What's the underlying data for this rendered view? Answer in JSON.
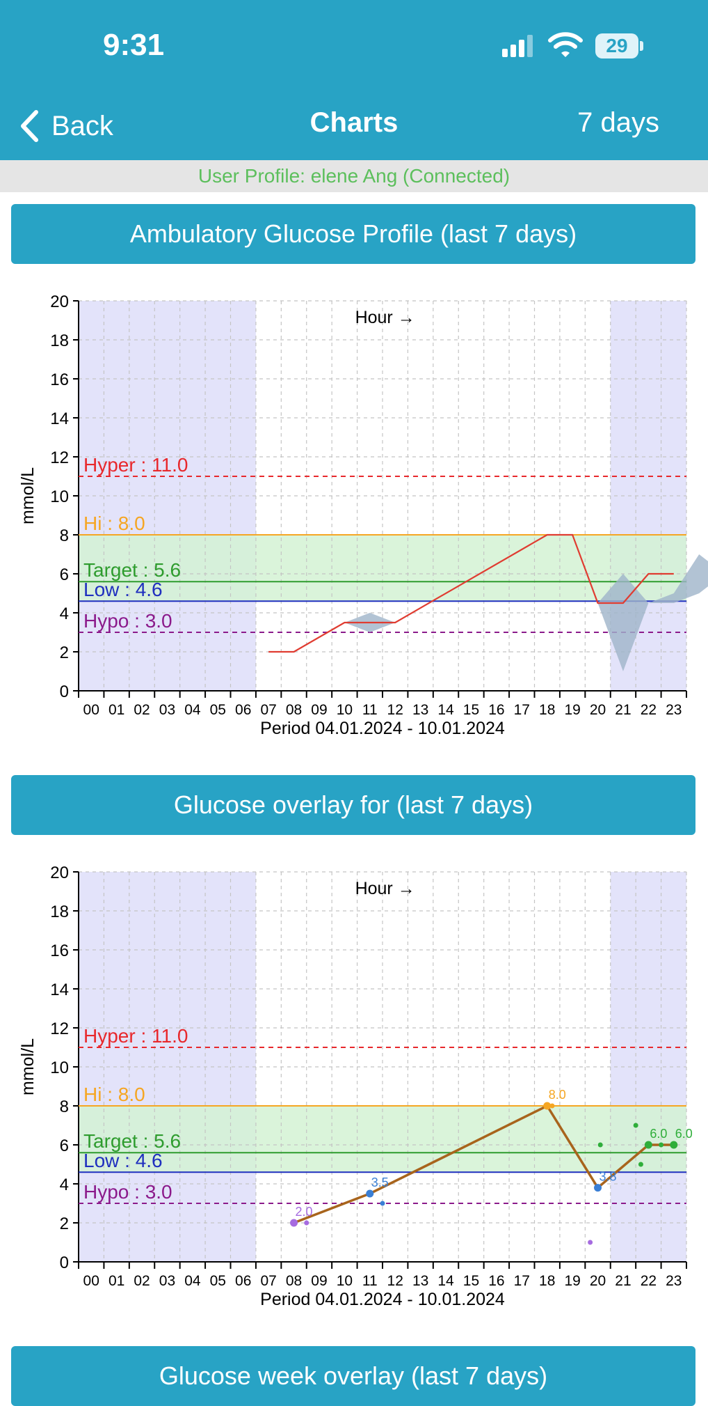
{
  "status": {
    "time": "9:31",
    "battery": "29"
  },
  "nav": {
    "back_label": "Back",
    "title": "Charts",
    "range_label": "7 days"
  },
  "profile_text": "User Profile: elene Ang (Connected)",
  "sections": {
    "agp_title": "Ambulatory Glucose Profile (last 7 days)",
    "overlay_title": "Glucose overlay for (last 7 days)",
    "week_title": "Glucose week overlay (last 7 days)"
  },
  "colors": {
    "brand": "#28a3c5",
    "hyper": "#e8282c",
    "hi": "#f5a623",
    "target": "#2e9c2e",
    "low": "#1f2fbf",
    "hypo": "#8b1a8b",
    "night_band": "#e3e3fa",
    "range_band": "#d4f2d4",
    "agp_line": "#e03c31",
    "agp_band": "#9fb4c9",
    "overlay_line": "#a8641c"
  },
  "chart_data": [
    {
      "type": "line",
      "title": "Ambulatory Glucose Profile (last 7 days)",
      "xlabel": "Period 04.01.2024 - 10.01.2024",
      "ylabel": "mmol/L",
      "axis_annotation": "Hour →",
      "categories": [
        "00",
        "01",
        "02",
        "03",
        "04",
        "05",
        "06",
        "07",
        "08",
        "09",
        "10",
        "11",
        "12",
        "13",
        "14",
        "15",
        "16",
        "17",
        "18",
        "19",
        "20",
        "21",
        "22",
        "23"
      ],
      "ylim": [
        0,
        20
      ],
      "yticks": [
        0,
        2,
        4,
        6,
        8,
        10,
        12,
        14,
        16,
        18,
        20
      ],
      "grid": true,
      "shaded_hours": [
        [
          0,
          7
        ],
        [
          21,
          24
        ]
      ],
      "target_range": [
        4.6,
        8.0
      ],
      "thresholds": [
        {
          "label": "Hyper : 11.0",
          "value": 11.0,
          "style": "dashed",
          "color": "#e8282c"
        },
        {
          "label": "Hi : 8.0",
          "value": 8.0,
          "style": "solid",
          "color": "#f5a623"
        },
        {
          "label": "Target : 5.6",
          "value": 5.6,
          "style": "solid",
          "color": "#2e9c2e"
        },
        {
          "label": "Low : 4.6",
          "value": 4.6,
          "style": "solid",
          "color": "#1f2fbf"
        },
        {
          "label": "Hypo : 3.0",
          "value": 3.0,
          "style": "dashed",
          "color": "#8b1a8b"
        }
      ],
      "series": [
        {
          "x": [
            8,
            9,
            11,
            13,
            19,
            20,
            21,
            22,
            23,
            24
          ],
          "values": [
            2.0,
            2.0,
            3.5,
            3.5,
            8.0,
            8.0,
            4.5,
            4.5,
            6.0,
            6.0
          ]
        }
      ],
      "bands": [
        {
          "x": [
            11,
            12,
            13
          ],
          "low": [
            3.5,
            3.0,
            3.5
          ],
          "high": [
            3.5,
            4.0,
            3.5
          ]
        },
        {
          "x": [
            21,
            22,
            23,
            24,
            25,
            26
          ],
          "low": [
            4.5,
            1.0,
            4.5,
            4.5,
            5.0,
            6.0
          ],
          "high": [
            4.5,
            6.0,
            4.5,
            5.0,
            7.0,
            6.0
          ]
        }
      ]
    },
    {
      "type": "scatter",
      "title": "Glucose overlay for (last 7 days)",
      "xlabel": "Period 04.01.2024 - 10.01.2024",
      "ylabel": "mmol/L",
      "axis_annotation": "Hour →",
      "categories": [
        "00",
        "01",
        "02",
        "03",
        "04",
        "05",
        "06",
        "07",
        "08",
        "09",
        "10",
        "11",
        "12",
        "13",
        "14",
        "15",
        "16",
        "17",
        "18",
        "19",
        "20",
        "21",
        "22",
        "23"
      ],
      "ylim": [
        0,
        20
      ],
      "yticks": [
        0,
        2,
        4,
        6,
        8,
        10,
        12,
        14,
        16,
        18,
        20
      ],
      "grid": true,
      "shaded_hours": [
        [
          0,
          7
        ],
        [
          21,
          24
        ]
      ],
      "target_range": [
        4.6,
        8.0
      ],
      "thresholds": [
        {
          "label": "Hyper : 11.0",
          "value": 11.0,
          "style": "dashed",
          "color": "#e8282c"
        },
        {
          "label": "Hi : 8.0",
          "value": 8.0,
          "style": "solid",
          "color": "#f5a623"
        },
        {
          "label": "Target : 5.6",
          "value": 5.6,
          "style": "solid",
          "color": "#2e9c2e"
        },
        {
          "label": "Low : 4.6",
          "value": 4.6,
          "style": "solid",
          "color": "#1f2fbf"
        },
        {
          "label": "Hypo : 3.0",
          "value": 3.0,
          "style": "dashed",
          "color": "#8b1a8b"
        }
      ],
      "line": {
        "x": [
          8.0,
          11.0,
          18.0,
          20.0,
          22.0,
          23.0
        ],
        "values": [
          2.0,
          3.5,
          8.0,
          3.8,
          6.0,
          6.0
        ]
      },
      "points": [
        {
          "x": 8.0,
          "y": 2.0,
          "color": "#a66be0",
          "label": "2.0"
        },
        {
          "x": 8.5,
          "y": 2.0,
          "color": "#a66be0",
          "label": ""
        },
        {
          "x": 11.0,
          "y": 3.5,
          "color": "#3a7fd5",
          "label": "3.5"
        },
        {
          "x": 11.5,
          "y": 3.0,
          "color": "#3a7fd5",
          "label": ""
        },
        {
          "x": 18.0,
          "y": 8.0,
          "color": "#f5a623",
          "label": "8.0"
        },
        {
          "x": 18.2,
          "y": 8.0,
          "color": "#f5a623",
          "label": ""
        },
        {
          "x": 19.7,
          "y": 1.0,
          "color": "#a66be0",
          "label": ""
        },
        {
          "x": 20.0,
          "y": 3.8,
          "color": "#3a7fd5",
          "label": "3.8"
        },
        {
          "x": 20.1,
          "y": 6.0,
          "color": "#2fae3a",
          "label": ""
        },
        {
          "x": 21.5,
          "y": 7.0,
          "color": "#2fae3a",
          "label": ""
        },
        {
          "x": 21.7,
          "y": 5.0,
          "color": "#2fae3a",
          "label": ""
        },
        {
          "x": 22.0,
          "y": 6.0,
          "color": "#2fae3a",
          "label": "6.0"
        },
        {
          "x": 22.5,
          "y": 6.0,
          "color": "#2fae3a",
          "label": ""
        },
        {
          "x": 23.0,
          "y": 6.0,
          "color": "#2fae3a",
          "label": "6.0"
        }
      ]
    }
  ]
}
